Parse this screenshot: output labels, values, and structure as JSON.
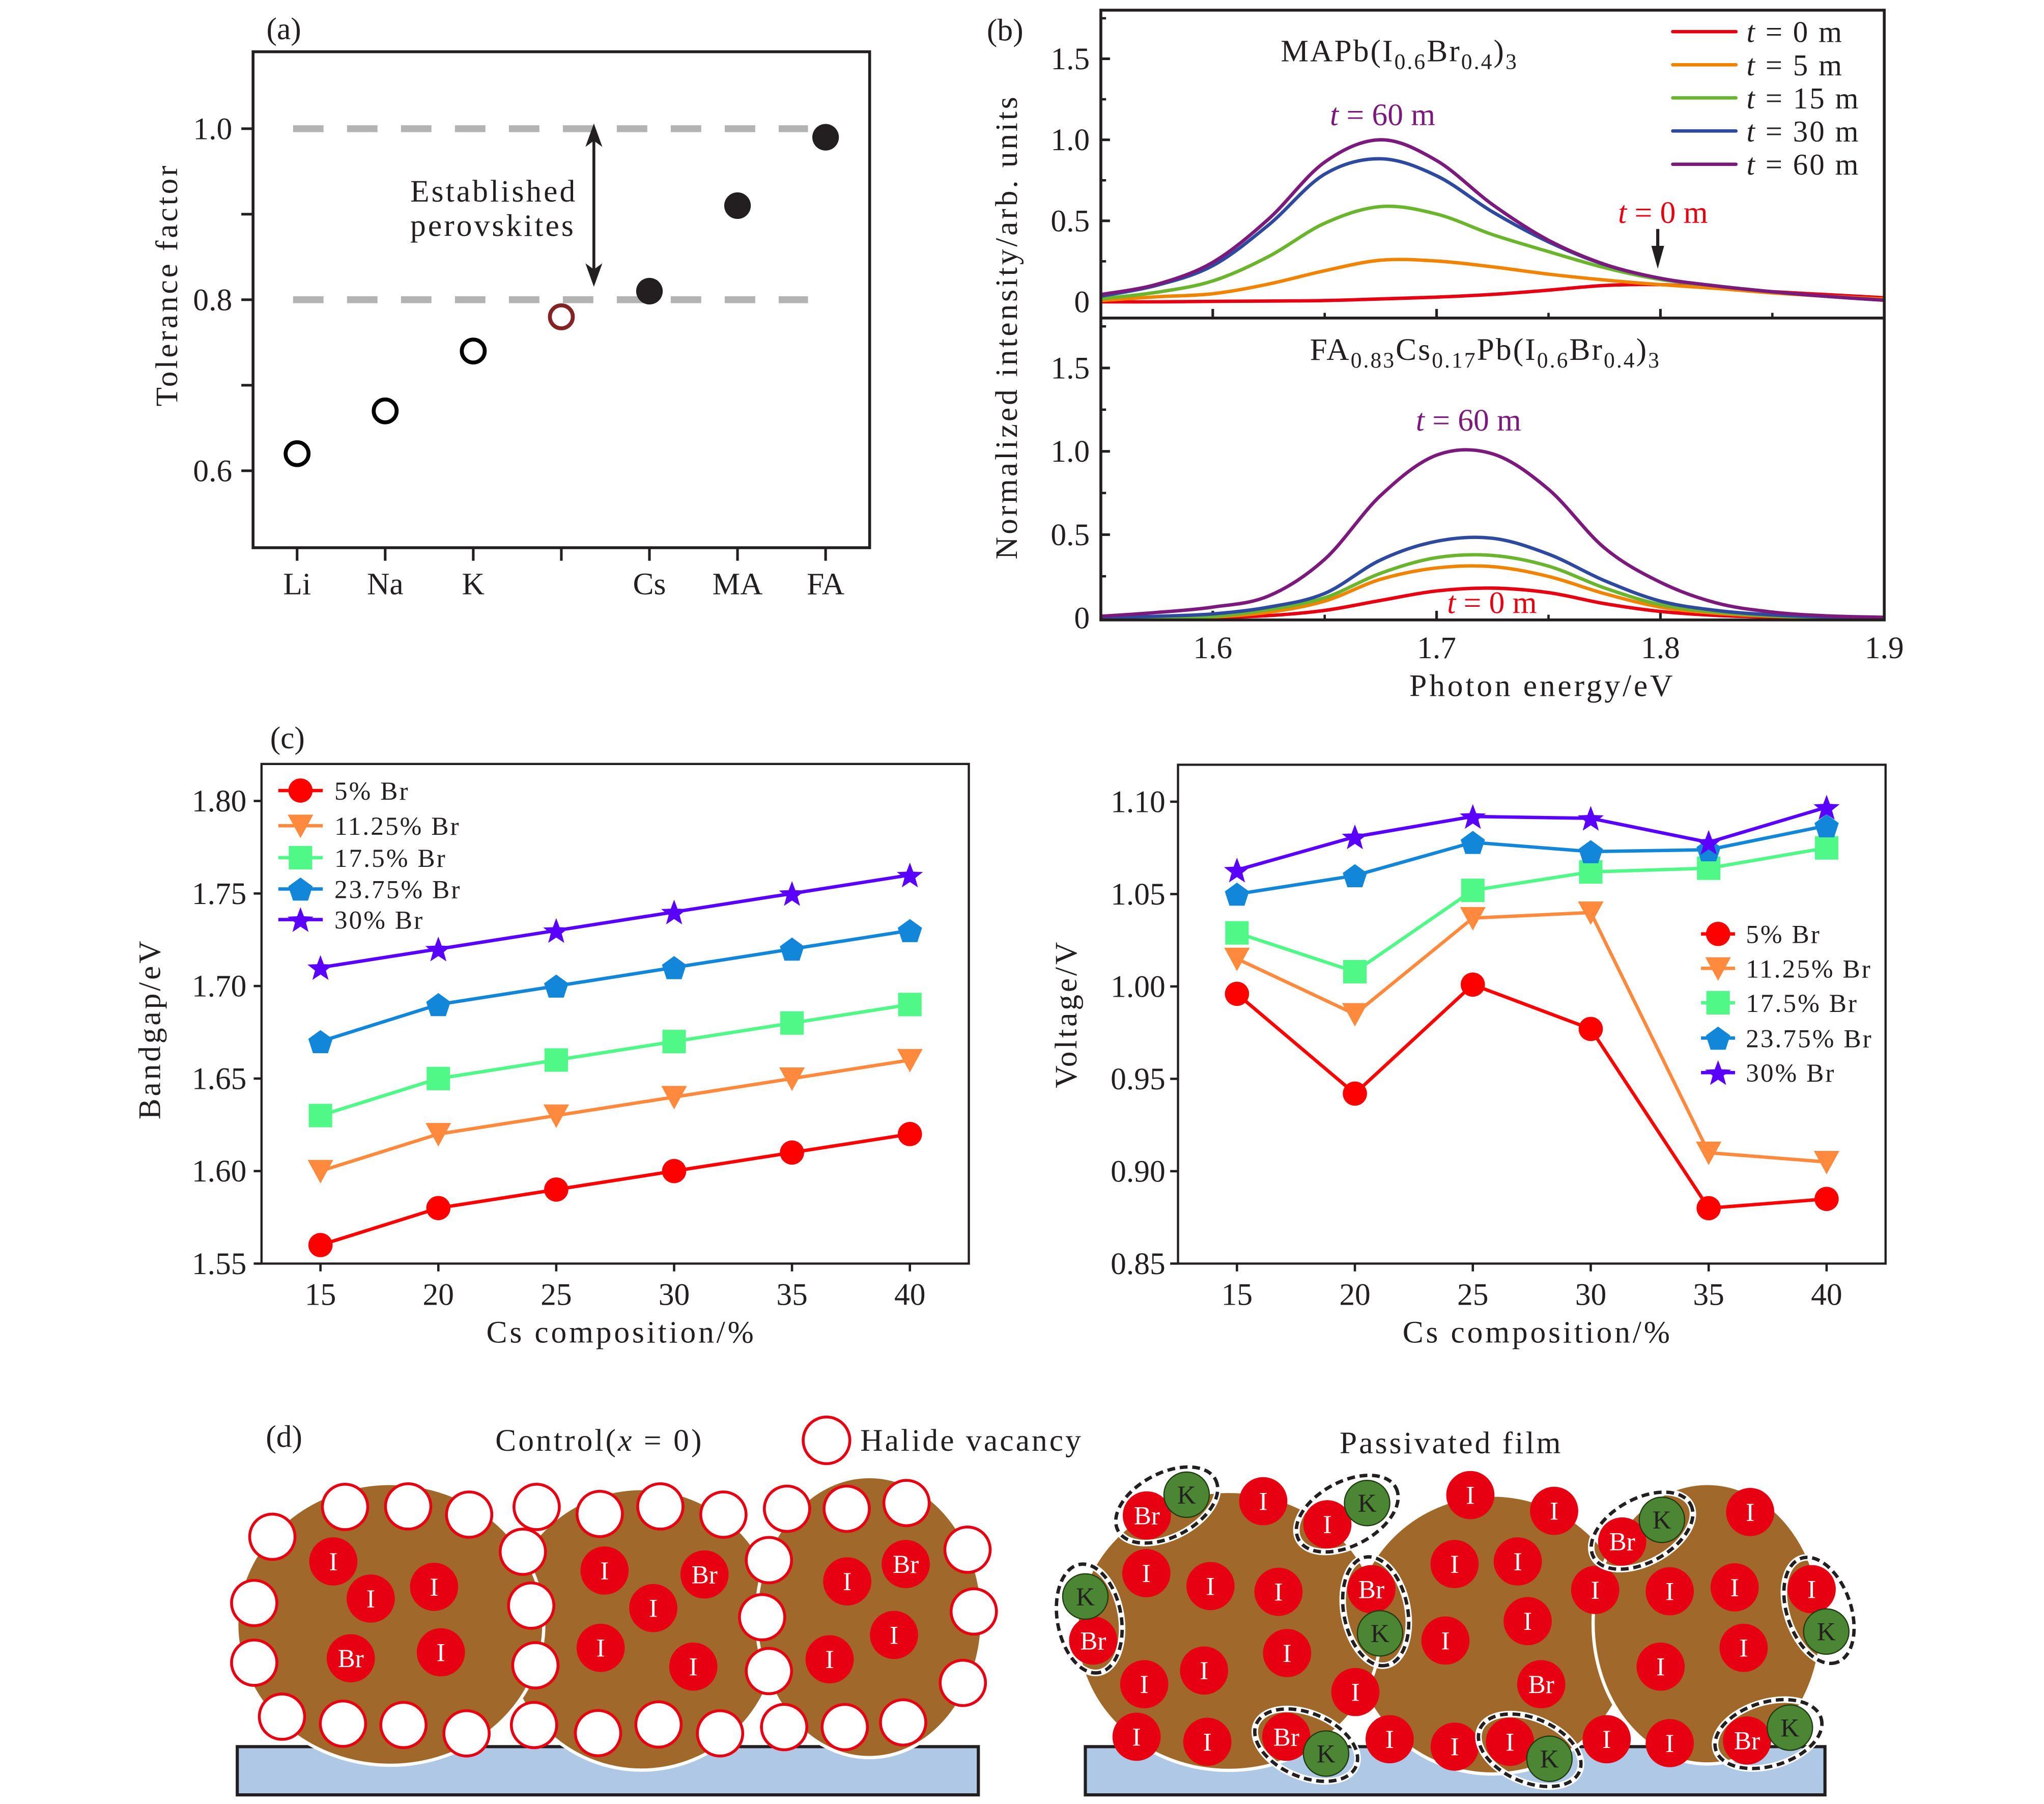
{
  "chart_data": [
    {
      "id": "a",
      "panel_label": "(a)",
      "type": "scatter",
      "title": "",
      "categories": [
        "Li",
        "Na",
        "K",
        "",
        "Cs",
        "MA",
        "FA"
      ],
      "values": [
        0.62,
        0.67,
        0.74,
        0.78,
        0.81,
        0.91,
        0.99
      ],
      "marker_styles": [
        "open",
        "open",
        "open",
        "open-highlight",
        "filled",
        "filled",
        "filled"
      ],
      "xlabel": "",
      "ylabel": "Tolerance factor",
      "ylim": [
        0.51,
        1.09
      ],
      "yticks": [
        0.6,
        0.7,
        0.8,
        0.9,
        1.0
      ],
      "ytick_labels": [
        "0.6",
        "",
        "0.8",
        "",
        "1.0"
      ],
      "grid": false,
      "reference_lines": [
        0.8,
        1.0
      ],
      "annotation": {
        "lines": [
          "Established",
          "perovskites"
        ],
        "arrow_from": 0.8,
        "arrow_to": 1.0
      },
      "colors": {
        "open": "#000000",
        "highlight": "#832326",
        "filled": "#231f20",
        "reference": "#b3b3b3",
        "arrow": "#231f20"
      }
    },
    {
      "id": "b-top",
      "panel_label": "(b)",
      "type": "line",
      "title": "MAPb(I0.6Br0.4)3",
      "title_parts": [
        "MAPb(I",
        "0.6",
        "Br",
        "0.4",
        ")",
        "3"
      ],
      "x": [
        1.55,
        1.575,
        1.6,
        1.625,
        1.65,
        1.675,
        1.7,
        1.725,
        1.75,
        1.775,
        1.8,
        1.825,
        1.85,
        1.875,
        1.9
      ],
      "xlim": [
        1.55,
        1.9
      ],
      "ylim": [
        -0.1,
        1.8
      ],
      "xticks_major": [
        1.6,
        1.7,
        1.8
      ],
      "xticks_minor": [
        1.65,
        1.75,
        1.85
      ],
      "yticks": [
        0,
        0.5,
        1.0,
        1.5
      ],
      "ytick_labels": [
        "0",
        "0.5",
        "1.0",
        "1.5"
      ],
      "yticks_minor": [
        0.25,
        0.75,
        1.25,
        1.75
      ],
      "xlabel": "",
      "ylabel": "Normalized intensity/arb. units",
      "legend": "top-right",
      "grid": false,
      "series": [
        {
          "name": "t = 0 m",
          "name_var": "t",
          "name_rest": " = 0 m",
          "color": "#e60012",
          "values": [
            0.0,
            0.0,
            0.003,
            0.005,
            0.008,
            0.018,
            0.029,
            0.046,
            0.072,
            0.101,
            0.106,
            0.086,
            0.063,
            0.044,
            0.025
          ]
        },
        {
          "name": "t = 5 m",
          "name_var": "t",
          "name_rest": " = 5 m",
          "color": "#f08300",
          "values": [
            0.008,
            0.031,
            0.05,
            0.11,
            0.192,
            0.257,
            0.252,
            0.216,
            0.171,
            0.135,
            0.106,
            0.083,
            0.055,
            0.034,
            0.017
          ]
        },
        {
          "name": "t = 15 m",
          "name_var": "t",
          "name_rest": " = 15 m",
          "color": "#6ab42e",
          "values": [
            0.019,
            0.059,
            0.129,
            0.28,
            0.485,
            0.588,
            0.542,
            0.415,
            0.31,
            0.211,
            0.138,
            0.098,
            0.062,
            0.033,
            0.01
          ]
        },
        {
          "name": "t = 30 m",
          "name_var": "t",
          "name_rest": " = 30 m",
          "color": "#2e4a9e",
          "values": [
            0.035,
            0.102,
            0.223,
            0.475,
            0.788,
            0.883,
            0.778,
            0.555,
            0.37,
            0.23,
            0.145,
            0.098,
            0.062,
            0.033,
            0.01
          ]
        },
        {
          "name": "t = 60 m",
          "name_var": "t",
          "name_rest": " = 60 m",
          "color": "#7b1a7c",
          "values": [
            0.045,
            0.108,
            0.244,
            0.512,
            0.862,
            1.0,
            0.872,
            0.6,
            0.38,
            0.232,
            0.145,
            0.098,
            0.062,
            0.033,
            0.01
          ]
        }
      ],
      "annotations": [
        {
          "text": "t = 60 m",
          "var": "t",
          "rest": " = 60 m",
          "color": "#7b1a7c",
          "series": "t = 60 m"
        },
        {
          "text": "t = 0 m",
          "var": "t",
          "rest": " = 0 m",
          "color": "#e60012",
          "series": "t = 0 m",
          "arrow": true
        }
      ]
    },
    {
      "id": "b-bottom",
      "type": "line",
      "title": "FA0.83Cs0.17Pb(I0.6Br0.4)3",
      "title_parts": [
        "FA",
        "0.83",
        "Cs",
        "0.17",
        "Pb(I",
        "0.6",
        "Br",
        "0.4",
        ")",
        "3"
      ],
      "x": [
        1.55,
        1.575,
        1.6,
        1.625,
        1.65,
        1.675,
        1.7,
        1.725,
        1.75,
        1.775,
        1.8,
        1.825,
        1.85,
        1.875,
        1.9
      ],
      "xlim": [
        1.55,
        1.9
      ],
      "ylim": [
        -0.012,
        1.8
      ],
      "xticks_major": [
        1.6,
        1.7,
        1.8
      ],
      "xticks_minor": [
        1.65,
        1.75,
        1.85
      ],
      "xtick_values": [
        1.6,
        1.7,
        1.8,
        1.9
      ],
      "xtick_labels": [
        "1.6",
        "1.7",
        "1.8",
        "1.9"
      ],
      "yticks": [
        0,
        0.5,
        1.0,
        1.5
      ],
      "ytick_labels": [
        "0",
        "0.5",
        "1.0",
        "1.5"
      ],
      "yticks_minor": [
        0.25,
        0.75,
        1.25,
        1.75
      ],
      "xlabel": "Photon energy/eV",
      "ylabel": "Normalized intensity/arb. units",
      "grid": false,
      "series": [
        {
          "name": "t = 0 m",
          "color": "#e60012",
          "values": [
            0.0,
            0.0,
            0.002,
            0.014,
            0.045,
            0.105,
            0.162,
            0.179,
            0.152,
            0.086,
            0.039,
            0.015,
            0.005,
            0.0,
            0.0
          ]
        },
        {
          "name": "t = 5 m",
          "color": "#f08300",
          "values": [
            0.0,
            0.002,
            0.006,
            0.034,
            0.101,
            0.232,
            0.3,
            0.308,
            0.249,
            0.146,
            0.065,
            0.028,
            0.01,
            0.003,
            0.0
          ]
        },
        {
          "name": "t = 15 m",
          "color": "#6ab42e",
          "values": [
            0.0,
            0.003,
            0.009,
            0.05,
            0.121,
            0.268,
            0.362,
            0.375,
            0.311,
            0.18,
            0.08,
            0.035,
            0.012,
            0.004,
            0.0
          ]
        },
        {
          "name": "t = 30 m",
          "color": "#2e4a9e",
          "values": [
            0.003,
            0.01,
            0.024,
            0.065,
            0.147,
            0.348,
            0.46,
            0.478,
            0.383,
            0.224,
            0.101,
            0.045,
            0.018,
            0.006,
            0.0
          ]
        },
        {
          "name": "t = 60 m",
          "color": "#7b1a7c",
          "values": [
            0.01,
            0.033,
            0.065,
            0.132,
            0.352,
            0.735,
            0.977,
            0.985,
            0.772,
            0.42,
            0.214,
            0.09,
            0.035,
            0.012,
            0.004
          ]
        }
      ],
      "annotations": [
        {
          "text": "t = 60 m",
          "var": "t",
          "rest": " = 60 m",
          "color": "#7b1a7c",
          "series": "t = 60 m"
        },
        {
          "text": "t = 0 m",
          "var": "t",
          "rest": " = 0 m",
          "color": "#e60012",
          "series": "t = 0 m"
        }
      ]
    },
    {
      "id": "c-left",
      "panel_label": "(c)",
      "type": "line",
      "title": "",
      "x": [
        15,
        20,
        25,
        30,
        35,
        40
      ],
      "xlim": [
        12.5,
        42.5
      ],
      "ylim": [
        1.55,
        1.82
      ],
      "xticks": [
        15,
        20,
        25,
        30,
        35,
        40
      ],
      "xtick_labels": [
        "15",
        "20",
        "25",
        "30",
        "35",
        "40"
      ],
      "yticks": [
        1.55,
        1.6,
        1.65,
        1.7,
        1.75,
        1.8
      ],
      "ytick_labels": [
        "1.55",
        "1.60",
        "1.65",
        "1.70",
        "1.75",
        "1.80"
      ],
      "xlabel": "Cs composition/%",
      "ylabel": "Bandgap/eV",
      "legend": "top-left",
      "grid": false,
      "series": [
        {
          "name": "5% Br",
          "marker": "circle",
          "color": "#ff0000",
          "values": [
            1.56,
            1.58,
            1.59,
            1.6,
            1.61,
            1.62
          ]
        },
        {
          "name": "11.25% Br",
          "marker": "triangle-down",
          "color": "#ff8a3d",
          "values": [
            1.6,
            1.62,
            1.63,
            1.64,
            1.65,
            1.66
          ]
        },
        {
          "name": "17.5% Br",
          "marker": "square",
          "color": "#50f888",
          "values": [
            1.63,
            1.65,
            1.66,
            1.67,
            1.68,
            1.69
          ]
        },
        {
          "name": "23.75% Br",
          "marker": "pentagon",
          "color": "#1286d8",
          "values": [
            1.67,
            1.69,
            1.7,
            1.71,
            1.72,
            1.73
          ]
        },
        {
          "name": "30% Br",
          "marker": "star",
          "color": "#5a00ff",
          "values": [
            1.71,
            1.72,
            1.73,
            1.74,
            1.75,
            1.76
          ]
        }
      ]
    },
    {
      "id": "c-right",
      "type": "line",
      "title": "",
      "x": [
        15,
        20,
        25,
        30,
        35,
        40
      ],
      "xlim": [
        12.5,
        42.5
      ],
      "ylim": [
        0.85,
        1.12
      ],
      "xticks": [
        15,
        20,
        25,
        30,
        35,
        40
      ],
      "xtick_labels": [
        "15",
        "20",
        "25",
        "30",
        "35",
        "40"
      ],
      "yticks": [
        0.85,
        0.9,
        0.95,
        1.0,
        1.05,
        1.1
      ],
      "ytick_labels": [
        "0.85",
        "0.90",
        "0.95",
        "1.00",
        "1.05",
        "1.10"
      ],
      "xlabel": "Cs composition/%",
      "ylabel": "Voltage/V",
      "legend": "center-right",
      "grid": false,
      "series": [
        {
          "name": "5% Br",
          "marker": "circle",
          "color": "#ff0000",
          "values": [
            0.996,
            0.942,
            1.001,
            0.977,
            0.88,
            0.885
          ]
        },
        {
          "name": "11.25% Br",
          "marker": "triangle-down",
          "color": "#ff8a3d",
          "values": [
            1.015,
            0.985,
            1.037,
            1.04,
            0.91,
            0.905
          ]
        },
        {
          "name": "17.5% Br",
          "marker": "square",
          "color": "#50f888",
          "values": [
            1.029,
            1.008,
            1.052,
            1.062,
            1.064,
            1.075
          ]
        },
        {
          "name": "23.75% Br",
          "marker": "pentagon",
          "color": "#1286d8",
          "values": [
            1.05,
            1.06,
            1.078,
            1.073,
            1.074,
            1.087
          ]
        },
        {
          "name": "30% Br",
          "marker": "star",
          "color": "#5a00ff",
          "values": [
            1.063,
            1.081,
            1.092,
            1.091,
            1.078,
            1.097
          ]
        }
      ]
    }
  ],
  "diagram": {
    "panel_label": "(d)",
    "control_title": "Control(x = 0)",
    "control_title_parts": [
      "Control(",
      "x",
      " = 0)"
    ],
    "legend": {
      "symbol": "open-circle",
      "label": "Halide vacancy"
    },
    "passivated_title": "Passivated film",
    "control_vacancy_count": 33,
    "control_atoms": [
      "I",
      "I",
      "I",
      "Br",
      "I",
      "I",
      "Br",
      "I",
      "I",
      "I",
      "I",
      "Br",
      "I",
      "I"
    ],
    "passivated_atoms": [
      "I",
      "I",
      "I",
      "I",
      "I",
      "I",
      "I",
      "I",
      "I",
      "I",
      "I",
      "I",
      "I",
      "I",
      "I",
      "I",
      "I",
      "I",
      "Br",
      "I",
      "I",
      "I",
      "I",
      "I",
      "I",
      "I",
      "I"
    ],
    "passivated_pairs": [
      [
        "Br",
        "K"
      ],
      [
        "I",
        "K"
      ],
      [
        "K",
        "Br"
      ],
      [
        "Br",
        "K"
      ],
      [
        "Br",
        "K"
      ],
      [
        "Br",
        "K"
      ],
      [
        "I",
        "K"
      ],
      [
        "I",
        "K"
      ],
      [
        "Br",
        "K"
      ]
    ],
    "colors": {
      "grain": "#a0692a",
      "substrate": "#aec8e6",
      "halide": "#e60012",
      "vacancy_stroke": "#e60012",
      "potassium": "#4b8633",
      "pair_outline": "#231f20"
    }
  }
}
